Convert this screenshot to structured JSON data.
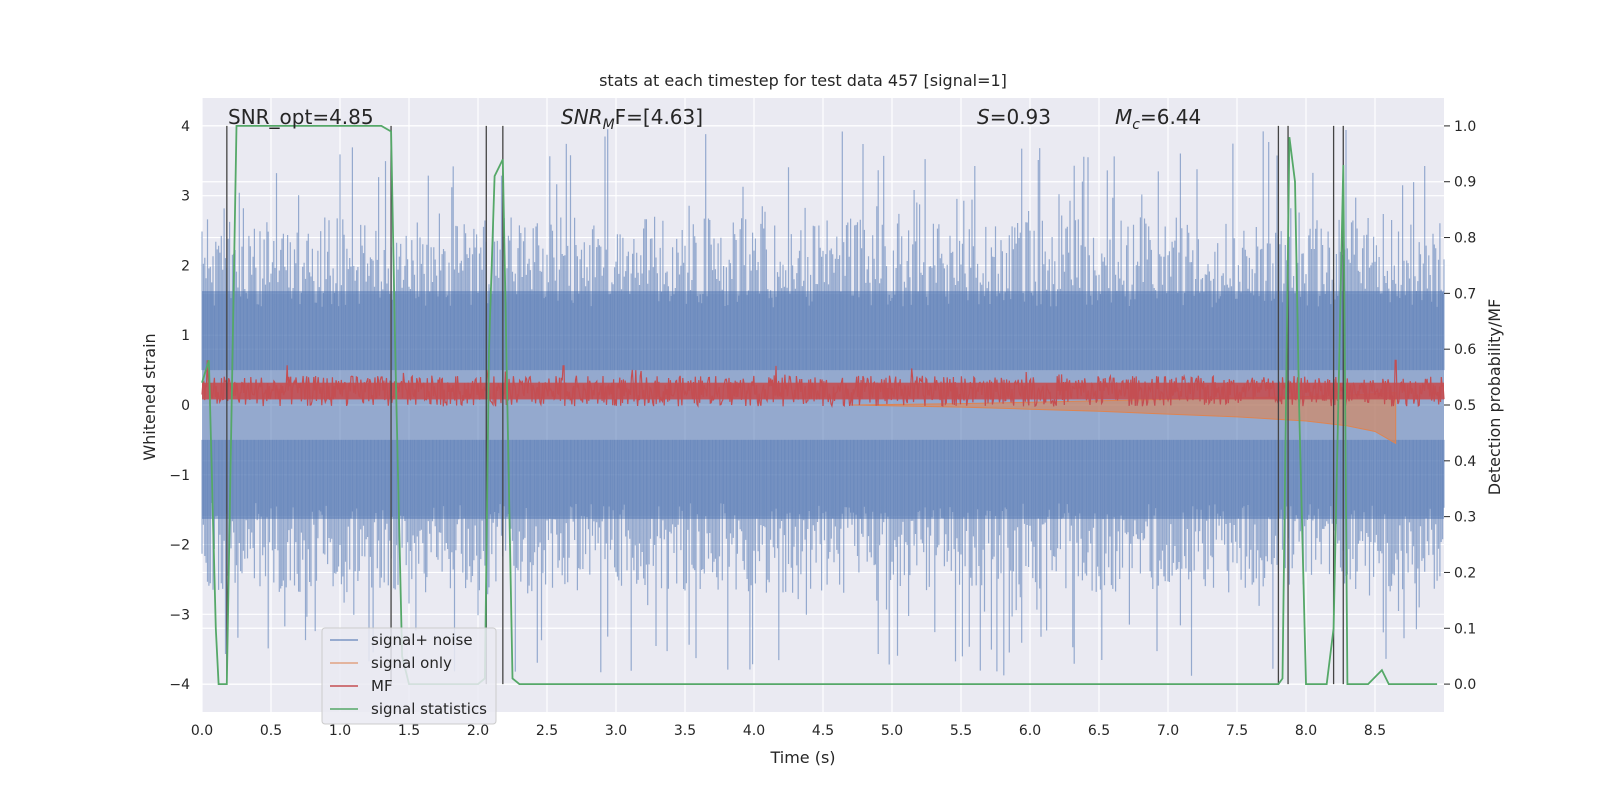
{
  "chart_data": {
    "type": "line",
    "title": "stats at each timestep for test data 457 [signal=1]",
    "xlabel": "Time (s)",
    "ylabel": "Whitened strain",
    "y2label": "Detection probability/MF",
    "xlim": [
      0.0,
      9.0
    ],
    "ylim": [
      -4.4,
      4.4
    ],
    "y2lim": [
      -0.05,
      1.05
    ],
    "x_ticks": [
      "0.0",
      "0.5",
      "1.0",
      "1.5",
      "2.0",
      "2.5",
      "3.0",
      "3.5",
      "4.0",
      "4.5",
      "5.0",
      "5.5",
      "6.0",
      "6.5",
      "7.0",
      "7.5",
      "8.0",
      "8.5"
    ],
    "y_ticks": [
      "4",
      "3",
      "2",
      "1",
      "0",
      "−1",
      "−2",
      "−3",
      "−4"
    ],
    "y2_ticks": [
      "1.0",
      "0.9",
      "0.8",
      "0.7",
      "0.6",
      "0.5",
      "0.4",
      "0.3",
      "0.2",
      "0.1",
      "0.0"
    ],
    "grid": true,
    "legend_position": "lower-left",
    "annotations": {
      "snr_opt": "SNR_opt=4.85",
      "snr_mf_base": "SNR",
      "snr_mf_sub": "M",
      "snr_mf_rest": "F=[4.63]",
      "s_sym": "S",
      "s_val": "=0.93",
      "mc_sym": "M",
      "mc_sub": "c",
      "mc_val": "=6.44"
    },
    "series": [
      {
        "name": "signal+ noise",
        "color": "#4c72b0",
        "axis": "left",
        "note_envelope": "dense noise band roughly between -2.5 and 2.5, spikes to about +/-4",
        "envelope_upper": 2.4,
        "envelope_lower": -2.4,
        "peak": 3.96,
        "trough": -3.9
      },
      {
        "name": "signal only",
        "color": "#dd8452",
        "axis": "left",
        "x": [
          4.7,
          5.5,
          6.0,
          6.5,
          7.0,
          7.5,
          8.0,
          8.3,
          8.5,
          8.65
        ],
        "y_lower": [
          0.0,
          -0.03,
          -0.06,
          -0.09,
          -0.13,
          -0.17,
          -0.23,
          -0.3,
          -0.38,
          -0.55
        ],
        "y_upper": [
          0.0,
          0.02,
          0.04,
          0.06,
          0.08,
          0.1,
          0.12,
          0.14,
          0.16,
          0.18
        ]
      },
      {
        "name": "MF",
        "color": "#c44e52",
        "axis": "right",
        "center": 0.525,
        "spread": 0.025,
        "peaks": [
          [
            0.04,
            0.58
          ],
          [
            2.2,
            0.56
          ],
          [
            2.62,
            0.57
          ],
          [
            4.16,
            0.57
          ],
          [
            8.65,
            0.58
          ]
        ]
      },
      {
        "name": "signal statistics",
        "color": "#55a868",
        "axis": "right",
        "x": [
          0.0,
          0.05,
          0.1,
          0.12,
          0.18,
          0.25,
          0.3,
          1.0,
          1.3,
          1.37,
          1.4,
          1.45,
          1.5,
          1.55,
          2.0,
          2.05,
          2.08,
          2.12,
          2.18,
          2.25,
          2.3,
          2.35,
          7.8,
          7.83,
          7.88,
          7.92,
          7.95,
          8.0,
          8.15,
          8.2,
          8.27,
          8.3,
          8.35,
          8.45,
          8.55,
          8.6,
          8.95
        ],
        "y": [
          0.54,
          0.58,
          0.1,
          0.0,
          0.0,
          1.0,
          1.0,
          1.0,
          1.0,
          0.99,
          0.6,
          0.05,
          0.0,
          0.0,
          0.0,
          0.01,
          0.6,
          0.91,
          0.94,
          0.01,
          0.0,
          0.0,
          0.0,
          0.01,
          0.98,
          0.9,
          0.5,
          0.0,
          0.0,
          0.1,
          0.93,
          0.0,
          0.0,
          0.0,
          0.025,
          0.0,
          0.0
        ]
      }
    ],
    "vertical_lines": [
      0.18,
      1.37,
      2.06,
      2.18,
      7.8,
      7.87,
      8.2,
      8.27
    ]
  }
}
